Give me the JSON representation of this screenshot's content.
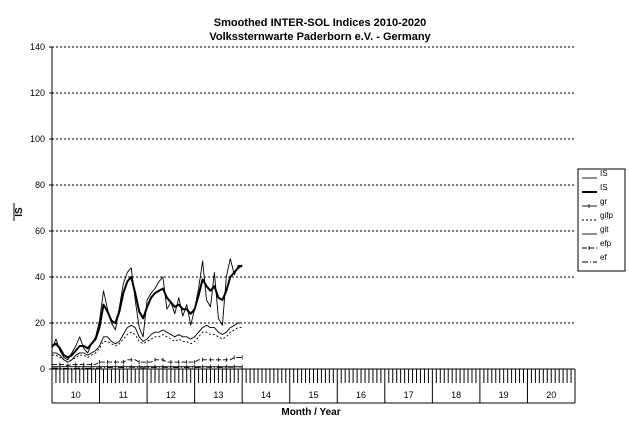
{
  "chart_data": {
    "type": "line",
    "title": "Smoothed INTER-SOL Indices 2010-2020",
    "subtitle": "Volkssternwarte Paderborn e.V. - Germany",
    "xlabel": "Month / Year",
    "ylabel": "IS",
    "ylim": [
      0,
      140
    ],
    "yticks": [
      0,
      20,
      40,
      60,
      80,
      100,
      120,
      140
    ],
    "x_year_labels": [
      "10",
      "11",
      "12",
      "13",
      "14",
      "15",
      "16",
      "17",
      "18",
      "19",
      "20"
    ],
    "xlim_months": [
      0,
      132
    ],
    "grid": "horizontal dotted",
    "legend_position": "right",
    "x": [
      0,
      1,
      2,
      3,
      4,
      5,
      6,
      7,
      8,
      9,
      10,
      11,
      12,
      13,
      14,
      15,
      16,
      17,
      18,
      19,
      20,
      21,
      22,
      23,
      24,
      25,
      26,
      27,
      28,
      29,
      30,
      31,
      32,
      33,
      34,
      35,
      36,
      37,
      38,
      39,
      40,
      41,
      42,
      43,
      44,
      45,
      46,
      47,
      48
    ],
    "series": [
      {
        "name": "IS",
        "style": "thin",
        "values": [
          9,
          13,
          8,
          5,
          4,
          7,
          10,
          14,
          9,
          7,
          11,
          14,
          21,
          34,
          26,
          20,
          17,
          27,
          37,
          42,
          44,
          30,
          18,
          14,
          30,
          33,
          35,
          38,
          40,
          26,
          29,
          24,
          31,
          23,
          28,
          19,
          26,
          35,
          47,
          30,
          27,
          42,
          22,
          19,
          40,
          48,
          41,
          45,
          45
        ]
      },
      {
        "name": "IS",
        "style": "thick",
        "values": [
          10,
          11,
          9,
          6,
          5,
          6,
          8,
          10,
          10,
          9,
          11,
          13,
          18,
          28,
          25,
          21,
          20,
          25,
          33,
          38,
          40,
          33,
          25,
          22,
          27,
          31,
          33,
          34,
          35,
          31,
          29,
          27,
          28,
          26,
          26,
          24,
          26,
          32,
          39,
          36,
          34,
          36,
          31,
          30,
          34,
          40,
          42,
          44,
          45
        ]
      },
      {
        "name": "gr",
        "style": "markers",
        "values": [
          1,
          1,
          1,
          1,
          1,
          1,
          1,
          1,
          1,
          1,
          1,
          1,
          1,
          1,
          1,
          1,
          1,
          1,
          1,
          1,
          1,
          1,
          1,
          1,
          1,
          1,
          1,
          1,
          1,
          1,
          1,
          1,
          1,
          1,
          1,
          1,
          1,
          1,
          1,
          1,
          1,
          1,
          1,
          1,
          1,
          1,
          1,
          1,
          1
        ]
      },
      {
        "name": "gifp",
        "style": "dotted",
        "values": [
          6,
          6,
          5,
          4,
          3,
          4,
          5,
          6,
          6,
          5,
          6,
          7,
          9,
          12,
          12,
          11,
          10,
          11,
          13,
          15,
          16,
          15,
          12,
          11,
          12,
          13,
          14,
          14,
          15,
          14,
          13,
          12,
          13,
          12,
          12,
          11,
          12,
          14,
          16,
          16,
          15,
          15,
          14,
          13,
          14,
          16,
          17,
          18,
          18
        ]
      },
      {
        "name": "git",
        "style": "solid",
        "values": [
          7,
          7,
          6,
          4,
          3,
          4,
          6,
          7,
          7,
          6,
          7,
          8,
          10,
          14,
          14,
          12,
          11,
          12,
          15,
          18,
          19,
          18,
          14,
          12,
          13,
          15,
          16,
          16,
          17,
          16,
          15,
          14,
          15,
          14,
          14,
          13,
          14,
          16,
          18,
          19,
          18,
          18,
          16,
          15,
          16,
          18,
          19,
          20,
          20
        ]
      },
      {
        "name": "efp",
        "style": "dash-marker",
        "values": [
          2,
          2,
          2,
          2,
          1.5,
          2,
          2,
          2,
          2,
          2,
          2,
          2,
          3,
          3,
          3,
          3,
          3,
          3,
          3,
          4,
          4,
          4,
          3,
          3,
          3,
          3,
          4,
          4,
          4,
          3,
          3,
          3,
          3,
          3,
          3,
          3,
          3,
          4,
          4,
          4,
          4,
          4,
          4,
          4,
          4,
          4,
          5,
          5,
          5
        ]
      },
      {
        "name": "ef",
        "style": "dash-dot",
        "values": [
          0.4,
          0.4,
          0.4,
          0.3,
          0.2,
          0.3,
          0.3,
          0.4,
          0.4,
          0.3,
          0.4,
          0.4,
          0.5,
          0.6,
          0.6,
          0.6,
          0.5,
          0.6,
          0.7,
          0.8,
          0.8,
          0.7,
          0.6,
          0.5,
          0.6,
          0.7,
          0.7,
          0.7,
          0.8,
          0.7,
          0.6,
          0.6,
          0.6,
          0.6,
          0.6,
          0.5,
          0.6,
          0.7,
          0.8,
          0.8,
          0.7,
          0.7,
          0.7,
          0.6,
          0.7,
          0.8,
          0.8,
          0.9,
          0.9
        ]
      }
    ]
  }
}
